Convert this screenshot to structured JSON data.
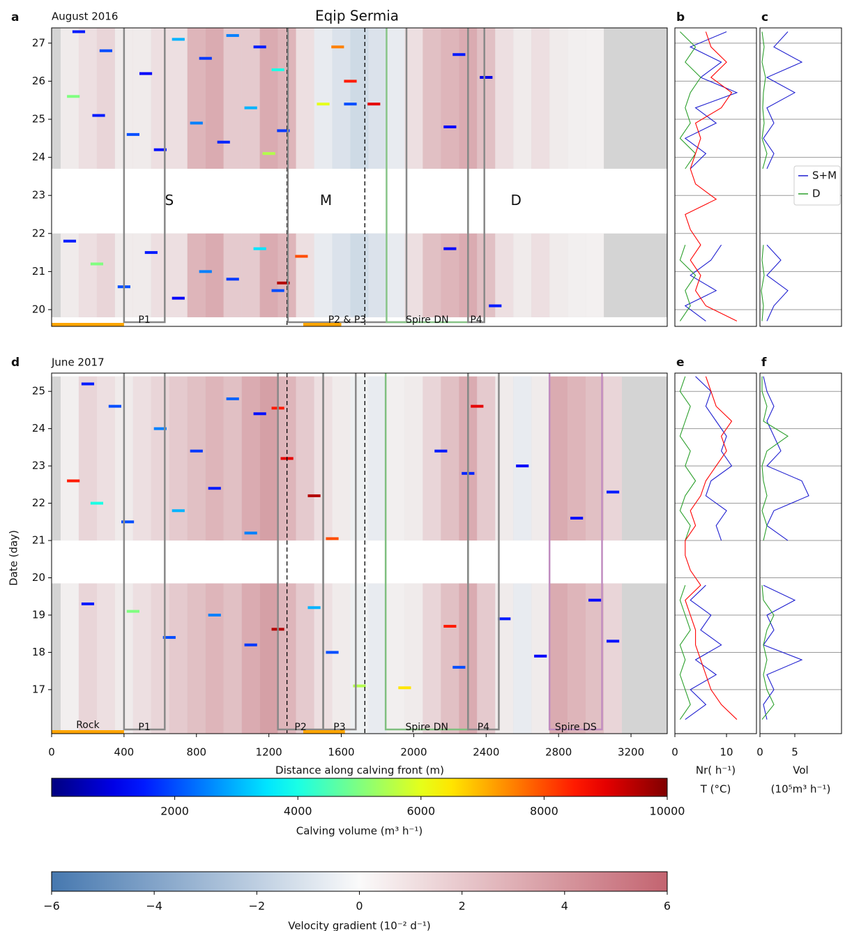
{
  "chart_data": [
    {
      "type": "heatmap",
      "label": "a",
      "title": "Eqip Sermia",
      "subtitle": "August 2016",
      "xlim": [
        0,
        3400
      ],
      "ylim": [
        19.56,
        27.4
      ],
      "yticks": [
        20,
        21,
        22,
        23,
        24,
        25,
        26,
        27
      ],
      "background": "#d4d4d4",
      "periods": [
        [
          19.8,
          22.0
        ],
        [
          23.7,
          27.4
        ]
      ],
      "boundaries": [
        1300,
        1730
      ],
      "regions": [
        "S",
        "M",
        "D"
      ],
      "rock": [
        [
          0,
          400
        ],
        [
          1390,
          1600
        ]
      ],
      "rock_color": "#ffa500",
      "profiles": [
        {
          "label": "P1",
          "x": [
            400,
            625
          ],
          "color": "#888888"
        },
        {
          "label": "P2 & P3",
          "x": [
            1305,
            1960
          ],
          "color": "#888888"
        },
        {
          "label": "Spire DN",
          "x": [
            1850,
            2300
          ],
          "color": "#88c488"
        },
        {
          "label": "P4",
          "x": [
            2300,
            2390
          ],
          "color": "#888888"
        }
      ],
      "velocity": {
        "x": [
          100,
          200,
          300,
          400,
          500,
          600,
          700,
          800,
          900,
          1000,
          1100,
          1200,
          1300,
          1400,
          1500,
          1600,
          1700,
          1800,
          1900,
          2000,
          2100,
          2200,
          2300,
          2400,
          2500,
          2600,
          2700,
          2800,
          2900,
          3000
        ],
        "values": [
          0.5,
          1,
          1.5,
          0.5,
          0.5,
          1,
          1,
          3,
          3.5,
          2,
          2,
          3.5,
          3,
          1,
          -0.5,
          -1,
          -1.5,
          -1,
          -0.5,
          1,
          2.5,
          3,
          3.5,
          2.5,
          1,
          0.5,
          1,
          0.5,
          0.3,
          0.2
        ]
      },
      "events": {
        "x": [
          150,
          300,
          520,
          700,
          850,
          1000,
          1150,
          1250,
          1580,
          1650,
          1780,
          2250,
          2400,
          120,
          260,
          450,
          600,
          800,
          950,
          1100,
          1200,
          1280,
          1500,
          1650,
          2200,
          100,
          250,
          400,
          550,
          700,
          850,
          1000,
          1150,
          1250,
          1280,
          1380,
          2450,
          2200
        ],
        "y": [
          27.3,
          26.8,
          26.2,
          27.1,
          26.6,
          27.2,
          26.9,
          26.3,
          26.9,
          26.0,
          25.4,
          26.7,
          26.1,
          25.6,
          25.1,
          24.6,
          24.2,
          24.9,
          24.4,
          25.3,
          24.1,
          24.7,
          25.4,
          25.4,
          24.8,
          21.8,
          21.2,
          20.6,
          21.5,
          20.3,
          21.0,
          20.8,
          21.6,
          20.5,
          20.7,
          21.4,
          20.1,
          21.6
        ],
        "volume": [
          1500,
          2000,
          1200,
          3000,
          1800,
          2500,
          1500,
          4000,
          7500,
          8500,
          9000,
          1500,
          1000,
          5000,
          1500,
          2000,
          1400,
          2500,
          1600,
          3000,
          5500,
          1800,
          6000,
          2000,
          1200,
          1500,
          5000,
          2000,
          1500,
          1200,
          2500,
          1800,
          3500,
          2000,
          9500,
          8000,
          1500,
          1300
        ]
      }
    },
    {
      "type": "line",
      "label": "b",
      "xlim": [
        0,
        15.8
      ],
      "y": [
        19.7,
        20.1,
        20.5,
        20.9,
        21.3,
        21.7,
        22.1,
        22.5,
        22.9,
        23.3,
        23.7,
        24.1,
        24.5,
        24.9,
        25.3,
        25.7,
        26.1,
        26.5,
        26.9,
        27.3
      ],
      "series": [
        {
          "name": "S+M",
          "color": "#1f1fd0",
          "values": [
            6,
            2,
            8,
            3,
            7,
            9,
            null,
            null,
            null,
            null,
            3,
            6,
            2,
            8,
            4,
            12,
            5,
            9,
            3,
            10
          ]
        },
        {
          "name": "D",
          "color": "#2ca02c",
          "values": [
            1,
            3,
            2,
            4,
            1,
            2,
            null,
            null,
            null,
            null,
            2,
            4,
            1,
            3,
            2,
            3,
            5,
            2,
            4,
            1
          ]
        },
        {
          "color": "#ff0000",
          "values": [
            12,
            6,
            4,
            5,
            3,
            5,
            3,
            2,
            8,
            4,
            3,
            4,
            5,
            4,
            9,
            11,
            7,
            10,
            7,
            6
          ]
        }
      ]
    },
    {
      "type": "line",
      "label": "c",
      "xlim": [
        0,
        11.7
      ],
      "legend": "right",
      "y": [
        19.7,
        20.1,
        20.5,
        20.9,
        21.3,
        21.7,
        22.1,
        22.5,
        22.9,
        23.3,
        23.7,
        24.1,
        24.5,
        24.9,
        25.3,
        25.7,
        26.1,
        26.5,
        26.9,
        27.3
      ],
      "series": [
        {
          "name": "S+M",
          "color": "#1f1fd0",
          "values": [
            1,
            2,
            4,
            1,
            3,
            1,
            null,
            null,
            null,
            null,
            1,
            2,
            0.5,
            2,
            1,
            5,
            1,
            6,
            2,
            4
          ]
        },
        {
          "name": "D",
          "color": "#2ca02c",
          "values": [
            0.3,
            0.5,
            0.2,
            0.6,
            0.3,
            0.5,
            null,
            null,
            null,
            null,
            0.4,
            1,
            0.3,
            0.6,
            0.4,
            0.5,
            0.8,
            0.3,
            0.6,
            0.3
          ]
        }
      ]
    },
    {
      "type": "heatmap",
      "label": "d",
      "subtitle": "June 2017",
      "xlabel": "Distance along calving front (m)",
      "ylabel": "Date (day)",
      "xlim": [
        0,
        3400
      ],
      "xticks": [
        0,
        400,
        800,
        1200,
        1600,
        2000,
        2400,
        2800,
        3200
      ],
      "ylim": [
        15.82,
        25.49
      ],
      "yticks": [
        17,
        18,
        19,
        20,
        21,
        22,
        23,
        24,
        25
      ],
      "background": "#d4d4d4",
      "periods": [
        [
          15.82,
          19.85
        ],
        [
          21.0,
          25.4
        ]
      ],
      "boundaries": [
        1300,
        1730
      ],
      "rock": [
        [
          0,
          400
        ],
        [
          1390,
          1620
        ]
      ],
      "rock_label": "Rock",
      "rock_color": "#ffa500",
      "profiles": [
        {
          "label": "P1",
          "x": [
            400,
            625
          ],
          "color": "#888888"
        },
        {
          "label": "P2",
          "x": [
            1250,
            1500
          ],
          "color": "#888888"
        },
        {
          "label": "P3",
          "x": [
            1500,
            1680
          ],
          "color": "#888888"
        },
        {
          "label": "Spire DN",
          "x": [
            1845,
            2300
          ],
          "color": "#7fbf7f"
        },
        {
          "label": "P4",
          "x": [
            2300,
            2470
          ],
          "color": "#888888"
        },
        {
          "label": "Spire DS",
          "x": [
            2750,
            3040
          ],
          "color": "#c08cc0"
        }
      ],
      "velocity": {
        "x": [
          100,
          200,
          300,
          400,
          500,
          600,
          700,
          800,
          900,
          1000,
          1100,
          1200,
          1300,
          1400,
          1500,
          1600,
          1700,
          1800,
          1900,
          2000,
          2100,
          2200,
          2300,
          2400,
          2500,
          2600,
          2700,
          2800,
          2900,
          3000,
          3100
        ],
        "values": [
          0.3,
          1.5,
          1,
          0.5,
          1,
          1.5,
          2,
          2.5,
          3,
          2.5,
          3.5,
          4,
          3,
          2,
          1,
          0.5,
          -0.3,
          -0.5,
          0.3,
          0.5,
          1.5,
          2.5,
          3.5,
          2,
          0.5,
          -0.5,
          0.5,
          3.5,
          3,
          2.5,
          1.5
        ]
      },
      "events": {
        "x": [
          200,
          350,
          600,
          800,
          1000,
          1150,
          1250,
          1300,
          1450,
          1550,
          120,
          250,
          420,
          700,
          900,
          1100,
          2150,
          2300,
          2350,
          2600,
          2900,
          3100,
          200,
          450,
          650,
          900,
          1100,
          1250,
          1450,
          1550,
          1700,
          1950,
          2200,
          2250,
          2500,
          2700,
          3000,
          3100
        ],
        "y": [
          25.2,
          24.6,
          24.0,
          23.4,
          24.8,
          24.4,
          24.55,
          23.2,
          22.2,
          21.05,
          22.6,
          22.0,
          21.5,
          21.8,
          22.4,
          21.2,
          23.4,
          22.8,
          24.6,
          23.0,
          21.6,
          22.3,
          19.3,
          19.1,
          18.4,
          19.0,
          18.2,
          18.62,
          19.2,
          18.0,
          17.1,
          17.05,
          18.7,
          17.6,
          18.9,
          17.9,
          19.4,
          18.3
        ],
        "volume": [
          1500,
          2000,
          2500,
          1800,
          2200,
          1400,
          8500,
          9000,
          9500,
          8000,
          8500,
          4000,
          2000,
          3000,
          1500,
          2500,
          1500,
          1600,
          9000,
          1200,
          1400,
          1500,
          1500,
          5000,
          2000,
          2500,
          1800,
          9500,
          3000,
          2000,
          5500,
          6500,
          8500,
          2000,
          1500,
          1200,
          1300,
          1400
        ]
      }
    },
    {
      "type": "line",
      "label": "e",
      "xlabel": "Nr( h⁻¹)",
      "xlabel2": "T (°C)",
      "xlim": [
        0,
        15.8
      ],
      "xticks": [
        0,
        10
      ],
      "y": [
        16.2,
        16.6,
        17.0,
        17.4,
        17.8,
        18.2,
        18.6,
        19.0,
        19.4,
        19.8,
        20.2,
        20.6,
        21.0,
        21.4,
        21.8,
        22.2,
        22.6,
        23.0,
        23.4,
        23.8,
        24.2,
        24.6,
        25.0,
        25.4
      ],
      "series": [
        {
          "name": "S+M",
          "color": "#1f1fd0",
          "values": [
            2,
            6,
            3,
            8,
            4,
            9,
            5,
            7,
            3,
            6,
            null,
            null,
            9,
            8,
            10,
            6,
            7,
            11,
            9,
            10,
            8,
            6,
            7,
            4
          ]
        },
        {
          "name": "D",
          "color": "#2ca02c",
          "values": [
            1,
            3,
            2,
            1,
            2,
            1,
            3,
            2,
            1,
            2,
            null,
            null,
            2,
            3,
            1,
            2,
            4,
            2,
            3,
            1,
            2,
            3,
            1,
            2
          ]
        },
        {
          "color": "#ff0000",
          "values": [
            12,
            9,
            7,
            6,
            5,
            4,
            4,
            3,
            2,
            5,
            3,
            2,
            2,
            4,
            3,
            5,
            6,
            8,
            10,
            9,
            11,
            8,
            7,
            6
          ]
        }
      ]
    },
    {
      "type": "line",
      "label": "f",
      "xlabel": "Vol",
      "xlabel2": "(10⁵m³ h⁻¹)",
      "xlim": [
        0,
        11.7
      ],
      "xticks": [
        0,
        5
      ],
      "y": [
        16.2,
        16.6,
        17.0,
        17.4,
        17.8,
        18.2,
        18.6,
        19.0,
        19.4,
        19.8,
        20.2,
        20.6,
        21.0,
        21.4,
        21.8,
        22.2,
        22.6,
        23.0,
        23.4,
        23.8,
        24.2,
        24.6,
        25.0,
        25.4
      ],
      "series": [
        {
          "name": "S+M",
          "color": "#1f1fd0",
          "values": [
            1,
            0.5,
            2,
            1,
            6,
            0.5,
            2,
            1,
            5,
            0.5,
            null,
            null,
            4,
            1,
            2,
            7,
            6,
            1,
            3,
            2,
            1,
            2,
            1,
            0.5
          ]
        },
        {
          "name": "D",
          "color": "#2ca02c",
          "values": [
            0.3,
            2,
            1,
            0.5,
            1,
            0.5,
            1,
            2,
            0.5,
            0.3,
            null,
            null,
            0.5,
            1,
            0.3,
            1,
            0.5,
            0.3,
            1,
            4,
            0.5,
            1,
            0.3,
            0.3
          ]
        }
      ]
    },
    {
      "type": "colorbar",
      "colormap": "jet",
      "xlim": [
        0,
        10000
      ],
      "xticks": [
        2000,
        4000,
        6000,
        8000,
        10000
      ],
      "xlabel": "Calving volume (m³ h⁻¹)"
    },
    {
      "type": "colorbar",
      "colormap": "diverging",
      "xlim": [
        -6,
        6
      ],
      "xticks": [
        {
          "value": -6,
          "label": "−6"
        },
        {
          "value": -4,
          "label": "−4"
        },
        {
          "value": -2,
          "label": "−2"
        },
        0,
        2,
        4,
        6
      ],
      "xlabel": "Velocity gradient (10⁻² d⁻¹)"
    }
  ]
}
